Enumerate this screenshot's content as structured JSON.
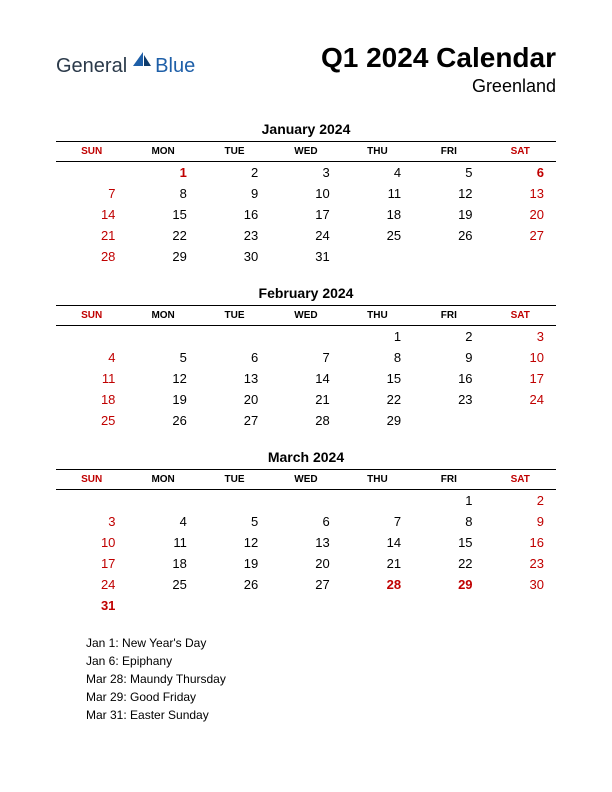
{
  "logo": {
    "text1": "General",
    "text2": "Blue",
    "color1": "#2b3a4a",
    "color2": "#1e5fa8"
  },
  "header": {
    "title": "Q1 2024 Calendar",
    "subtitle": "Greenland"
  },
  "day_headers": [
    "SUN",
    "MON",
    "TUE",
    "WED",
    "THU",
    "FRI",
    "SAT"
  ],
  "weekend_cols": [
    0,
    6
  ],
  "months": [
    {
      "name": "January 2024",
      "weeks": [
        [
          null,
          {
            "d": 1,
            "red": true,
            "bold": true
          },
          {
            "d": 2
          },
          {
            "d": 3
          },
          {
            "d": 4
          },
          {
            "d": 5
          },
          {
            "d": 6,
            "red": true,
            "bold": true
          }
        ],
        [
          {
            "d": 7,
            "red": true
          },
          {
            "d": 8
          },
          {
            "d": 9
          },
          {
            "d": 10
          },
          {
            "d": 11
          },
          {
            "d": 12
          },
          {
            "d": 13,
            "red": true
          }
        ],
        [
          {
            "d": 14,
            "red": true
          },
          {
            "d": 15
          },
          {
            "d": 16
          },
          {
            "d": 17
          },
          {
            "d": 18
          },
          {
            "d": 19
          },
          {
            "d": 20,
            "red": true
          }
        ],
        [
          {
            "d": 21,
            "red": true
          },
          {
            "d": 22
          },
          {
            "d": 23
          },
          {
            "d": 24
          },
          {
            "d": 25
          },
          {
            "d": 26
          },
          {
            "d": 27,
            "red": true
          }
        ],
        [
          {
            "d": 28,
            "red": true
          },
          {
            "d": 29
          },
          {
            "d": 30
          },
          {
            "d": 31
          },
          null,
          null,
          null
        ]
      ]
    },
    {
      "name": "February 2024",
      "weeks": [
        [
          null,
          null,
          null,
          null,
          {
            "d": 1
          },
          {
            "d": 2
          },
          {
            "d": 3,
            "red": true
          }
        ],
        [
          {
            "d": 4,
            "red": true
          },
          {
            "d": 5
          },
          {
            "d": 6
          },
          {
            "d": 7
          },
          {
            "d": 8
          },
          {
            "d": 9
          },
          {
            "d": 10,
            "red": true
          }
        ],
        [
          {
            "d": 11,
            "red": true
          },
          {
            "d": 12
          },
          {
            "d": 13
          },
          {
            "d": 14
          },
          {
            "d": 15
          },
          {
            "d": 16
          },
          {
            "d": 17,
            "red": true
          }
        ],
        [
          {
            "d": 18,
            "red": true
          },
          {
            "d": 19
          },
          {
            "d": 20
          },
          {
            "d": 21
          },
          {
            "d": 22
          },
          {
            "d": 23
          },
          {
            "d": 24,
            "red": true
          }
        ],
        [
          {
            "d": 25,
            "red": true
          },
          {
            "d": 26
          },
          {
            "d": 27
          },
          {
            "d": 28
          },
          {
            "d": 29
          },
          null,
          null
        ]
      ]
    },
    {
      "name": "March 2024",
      "weeks": [
        [
          null,
          null,
          null,
          null,
          null,
          {
            "d": 1
          },
          {
            "d": 2,
            "red": true
          }
        ],
        [
          {
            "d": 3,
            "red": true
          },
          {
            "d": 4
          },
          {
            "d": 5
          },
          {
            "d": 6
          },
          {
            "d": 7
          },
          {
            "d": 8
          },
          {
            "d": 9,
            "red": true
          }
        ],
        [
          {
            "d": 10,
            "red": true
          },
          {
            "d": 11
          },
          {
            "d": 12
          },
          {
            "d": 13
          },
          {
            "d": 14
          },
          {
            "d": 15
          },
          {
            "d": 16,
            "red": true
          }
        ],
        [
          {
            "d": 17,
            "red": true
          },
          {
            "d": 18
          },
          {
            "d": 19
          },
          {
            "d": 20
          },
          {
            "d": 21
          },
          {
            "d": 22
          },
          {
            "d": 23,
            "red": true
          }
        ],
        [
          {
            "d": 24,
            "red": true
          },
          {
            "d": 25
          },
          {
            "d": 26
          },
          {
            "d": 27
          },
          {
            "d": 28,
            "red": true,
            "bold": true
          },
          {
            "d": 29,
            "red": true,
            "bold": true
          },
          {
            "d": 30,
            "red": true
          }
        ],
        [
          {
            "d": 31,
            "red": true,
            "bold": true
          },
          null,
          null,
          null,
          null,
          null,
          null
        ]
      ]
    }
  ],
  "holidays": [
    "Jan 1: New Year's Day",
    "Jan 6: Epiphany",
    "Mar 28: Maundy Thursday",
    "Mar 29: Good Friday",
    "Mar 31: Easter Sunday"
  ],
  "colors": {
    "red": "#c00000",
    "black": "#000000",
    "bg": "#ffffff"
  }
}
